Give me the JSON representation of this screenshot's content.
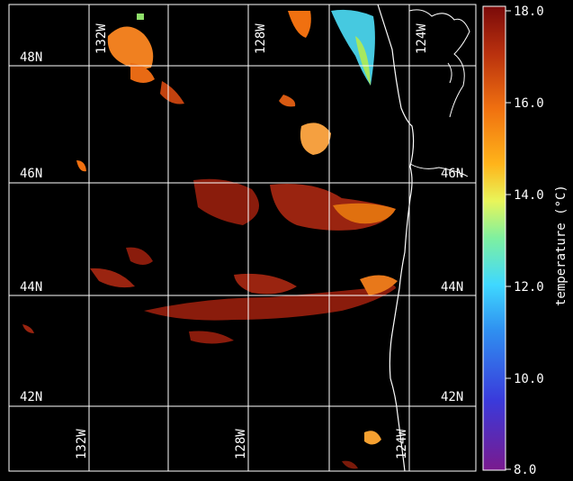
{
  "map": {
    "lat_labels": [
      "48N",
      "46N",
      "44N",
      "42N"
    ],
    "lon_labels_top": [
      "132W",
      "128W",
      "124W"
    ],
    "lon_labels_bottom": [
      "132W",
      "128W",
      "124W"
    ],
    "background_color": "#000000",
    "grid_color": "#ffffff",
    "coastline_color": "#ffffff"
  },
  "colorbar": {
    "label": "temperature (°C)",
    "ticks": [
      "18.0",
      "16.0",
      "14.0",
      "12.0",
      "10.0",
      "8.0"
    ],
    "min": 8.0,
    "max": 18.0,
    "colors": [
      "#7a1a8e",
      "#2f5fd6",
      "#3fc9ff",
      "#79f0a0",
      "#f5f05a",
      "#ffb41a",
      "#f07010",
      "#b03010",
      "#7a0a0a"
    ]
  }
}
